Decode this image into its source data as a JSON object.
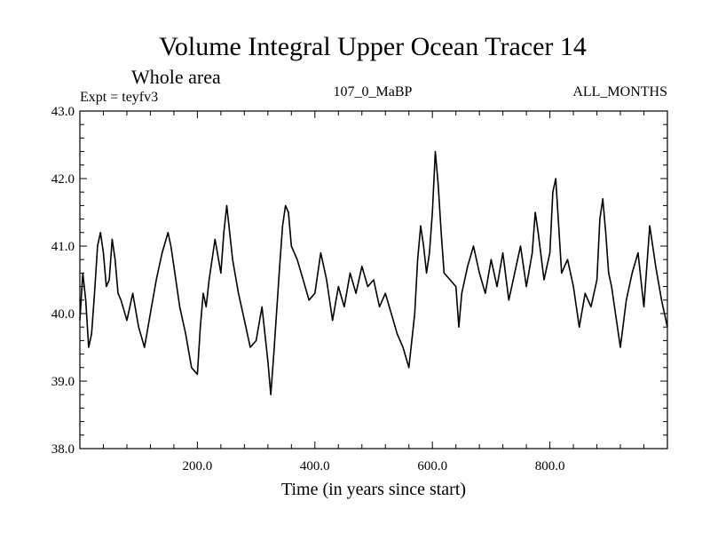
{
  "chart_data": {
    "type": "line",
    "title": "Volume Integral Upper Ocean Tracer 14",
    "subtitle": "Whole area",
    "experiment_label": "Expt = teyfv3",
    "center_label": "107_0_MaBP",
    "right_label": "ALL_MONTHS",
    "xlabel": "Time (in years since start)",
    "ylabel": "",
    "xlim": [
      0,
      1000
    ],
    "ylim": [
      38.0,
      43.0
    ],
    "x_ticks": [
      200,
      400,
      600,
      800
    ],
    "x_tick_labels": [
      "200.0",
      "400.0",
      "600.0",
      "800.0"
    ],
    "y_ticks": [
      38,
      39,
      40,
      41,
      42,
      43
    ],
    "y_tick_labels": [
      "38.0",
      "39.0",
      "40.0",
      "41.0",
      "42.0",
      "43.0"
    ],
    "grid": false,
    "series": [
      {
        "name": "Tracer 14",
        "color": "#000000",
        "x": [
          0,
          5,
          10,
          15,
          20,
          25,
          30,
          35,
          40,
          45,
          50,
          55,
          60,
          65,
          70,
          80,
          90,
          100,
          110,
          120,
          130,
          140,
          150,
          155,
          160,
          165,
          170,
          180,
          190,
          200,
          205,
          210,
          215,
          220,
          230,
          240,
          245,
          250,
          255,
          260,
          270,
          280,
          290,
          300,
          310,
          320,
          325,
          330,
          340,
          345,
          350,
          355,
          360,
          370,
          380,
          390,
          400,
          410,
          420,
          430,
          440,
          450,
          460,
          470,
          480,
          490,
          500,
          510,
          520,
          530,
          540,
          550,
          560,
          565,
          570,
          575,
          580,
          585,
          590,
          595,
          600,
          605,
          610,
          615,
          620,
          630,
          640,
          645,
          650,
          660,
          670,
          680,
          690,
          700,
          710,
          720,
          730,
          740,
          750,
          760,
          770,
          775,
          780,
          790,
          800,
          805,
          810,
          815,
          820,
          830,
          840,
          850,
          860,
          870,
          880,
          885,
          890,
          895,
          900,
          905,
          910,
          920,
          930,
          940,
          950,
          960,
          970,
          980,
          990,
          1000
        ],
        "values": [
          39.9,
          40.6,
          40.2,
          39.5,
          39.7,
          40.3,
          41.0,
          41.2,
          40.9,
          40.4,
          40.5,
          41.1,
          40.8,
          40.3,
          40.2,
          39.9,
          40.3,
          39.8,
          39.5,
          40.0,
          40.5,
          40.9,
          41.2,
          41.0,
          40.7,
          40.4,
          40.1,
          39.7,
          39.2,
          39.1,
          39.8,
          40.3,
          40.1,
          40.5,
          41.1,
          40.6,
          41.2,
          41.6,
          41.2,
          40.8,
          40.3,
          39.9,
          39.5,
          39.6,
          40.1,
          39.3,
          38.8,
          39.4,
          40.7,
          41.3,
          41.6,
          41.5,
          41.0,
          40.8,
          40.5,
          40.2,
          40.3,
          40.9,
          40.5,
          39.9,
          40.4,
          40.1,
          40.6,
          40.3,
          40.7,
          40.4,
          40.5,
          40.1,
          40.3,
          40.0,
          39.7,
          39.5,
          39.2,
          39.6,
          40.0,
          40.8,
          41.3,
          41.0,
          40.6,
          40.9,
          41.5,
          42.4,
          41.9,
          41.2,
          40.6,
          40.5,
          40.4,
          39.8,
          40.3,
          40.7,
          41.0,
          40.6,
          40.3,
          40.8,
          40.4,
          40.9,
          40.2,
          40.6,
          41.0,
          40.4,
          40.9,
          41.5,
          41.2,
          40.5,
          40.9,
          41.8,
          42.0,
          41.3,
          40.6,
          40.8,
          40.4,
          39.8,
          40.3,
          40.1,
          40.5,
          41.4,
          41.7,
          41.2,
          40.6,
          40.4,
          40.1,
          39.5,
          40.2,
          40.6,
          40.9,
          40.1,
          41.3,
          40.7,
          40.2,
          39.8
        ]
      }
    ]
  }
}
